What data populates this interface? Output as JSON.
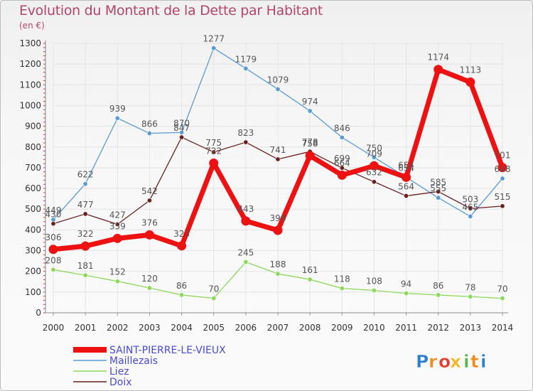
{
  "chart_data": {
    "type": "line",
    "title": "Evolution du Montant de la Dette par Habitant",
    "subtitle": "(en €)",
    "categories": [
      "2000",
      "2001",
      "2002",
      "2003",
      "2004",
      "2005",
      "2006",
      "2007",
      "2008",
      "2009",
      "2010",
      "2011",
      "2012",
      "2013",
      "2014"
    ],
    "ylim": [
      0,
      1300
    ],
    "yticks": [
      0,
      100,
      200,
      300,
      400,
      500,
      600,
      700,
      800,
      900,
      1000,
      1100,
      1200,
      1300
    ],
    "grid": true,
    "legend_position": "bottom-left",
    "series": [
      {
        "name": "SAINT-PIERRE-LE-VIEUX",
        "color": "#ee1111",
        "values": [
          306,
          322,
          359,
          376,
          323,
          722,
          443,
          398,
          758,
          664,
          709,
          654,
          1174,
          1113,
          701
        ]
      },
      {
        "name": "Maillezais",
        "color": "#5b9bd5",
        "values": [
          449,
          622,
          939,
          866,
          870,
          1277,
          1179,
          1079,
          974,
          846,
          750,
          654,
          555,
          465,
          648
        ]
      },
      {
        "name": "Liez",
        "color": "#8cd85a",
        "values": [
          208,
          181,
          152,
          120,
          86,
          70,
          245,
          188,
          161,
          118,
          108,
          94,
          86,
          78,
          70
        ]
      },
      {
        "name": "Doix",
        "color": "#6b2020",
        "values": [
          430,
          477,
          427,
          542,
          847,
          775,
          823,
          741,
          778,
          699,
          632,
          564,
          585,
          503,
          515
        ]
      }
    ]
  },
  "branding": {
    "logo_text": "Proxiti",
    "logo_letters": [
      "P",
      "r",
      "o",
      "x",
      "i",
      "t",
      "i"
    ],
    "logo_colors": [
      "#2f7fd0",
      "#f08a1c",
      "#e23d2d",
      "#f6b51e",
      "#5bb34a",
      "#f08a1c",
      "#2f7fd0"
    ]
  }
}
